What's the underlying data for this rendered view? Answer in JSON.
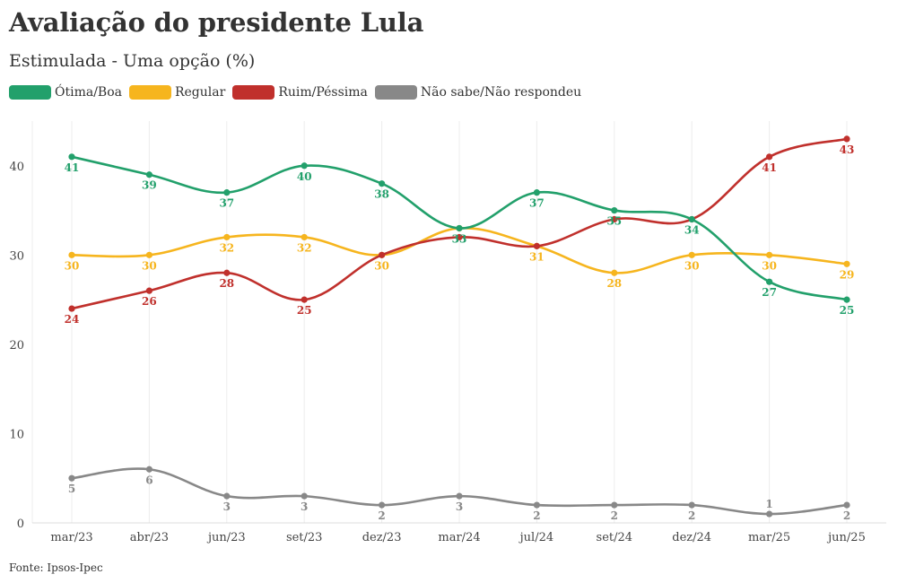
{
  "chart_data": {
    "type": "line",
    "title": "Avaliação do presidente Lula",
    "subtitle": "Estimulada - Uma opção (%)",
    "source": "Fonte: Ipsos-Ipec",
    "categories": [
      "mar/23",
      "abr/23",
      "jun/23",
      "set/23",
      "dez/23",
      "mar/24",
      "jul/24",
      "set/24",
      "dez/24",
      "mar/25",
      "jun/25"
    ],
    "ylim": [
      0,
      45
    ],
    "yticks": [
      0,
      10,
      20,
      30,
      40
    ],
    "grid": true,
    "legend_position": "top-left",
    "series": [
      {
        "name": "Ótima/Boa",
        "color": "#22a06b",
        "values": [
          41,
          39,
          37,
          40,
          38,
          33,
          37,
          35,
          34,
          27,
          25
        ]
      },
      {
        "name": "Regular",
        "color": "#f6b51e",
        "values": [
          30,
          30,
          32,
          32,
          30,
          33,
          31,
          28,
          30,
          30,
          29
        ]
      },
      {
        "name": "Ruim/Péssima",
        "color": "#c0302c",
        "values": [
          24,
          26,
          28,
          25,
          30,
          32,
          31,
          34,
          34,
          41,
          43
        ]
      },
      {
        "name": "Não sabe/Não respondeu",
        "color": "#888888",
        "values": [
          5,
          6,
          3,
          3,
          2,
          3,
          2,
          2,
          2,
          1,
          2
        ]
      }
    ],
    "data_labels": [
      {
        "series": 0,
        "index": 0,
        "text": "41",
        "pos": "below"
      },
      {
        "series": 0,
        "index": 1,
        "text": "39",
        "pos": "below"
      },
      {
        "series": 0,
        "index": 2,
        "text": "37",
        "pos": "below"
      },
      {
        "series": 0,
        "index": 3,
        "text": "40",
        "pos": "below"
      },
      {
        "series": 0,
        "index": 4,
        "text": "38",
        "pos": "below"
      },
      {
        "series": 0,
        "index": 5,
        "text": "33",
        "pos": "below"
      },
      {
        "series": 0,
        "index": 6,
        "text": "37",
        "pos": "below"
      },
      {
        "series": 0,
        "index": 7,
        "text": "35",
        "pos": "below"
      },
      {
        "series": 0,
        "index": 8,
        "text": "34",
        "pos": "below"
      },
      {
        "series": 0,
        "index": 9,
        "text": "27",
        "pos": "below"
      },
      {
        "series": 0,
        "index": 10,
        "text": "25",
        "pos": "below"
      },
      {
        "series": 1,
        "index": 0,
        "text": "30",
        "pos": "below"
      },
      {
        "series": 1,
        "index": 1,
        "text": "30",
        "pos": "below"
      },
      {
        "series": 1,
        "index": 2,
        "text": "32",
        "pos": "below"
      },
      {
        "series": 1,
        "index": 3,
        "text": "32",
        "pos": "below"
      },
      {
        "series": 1,
        "index": 4,
        "text": "30",
        "pos": "below"
      },
      {
        "series": 1,
        "index": 6,
        "text": "31",
        "pos": "below"
      },
      {
        "series": 1,
        "index": 7,
        "text": "28",
        "pos": "below"
      },
      {
        "series": 1,
        "index": 8,
        "text": "30",
        "pos": "below"
      },
      {
        "series": 1,
        "index": 9,
        "text": "30",
        "pos": "below"
      },
      {
        "series": 1,
        "index": 10,
        "text": "29",
        "pos": "below"
      },
      {
        "series": 2,
        "index": 0,
        "text": "24",
        "pos": "below"
      },
      {
        "series": 2,
        "index": 1,
        "text": "26",
        "pos": "below"
      },
      {
        "series": 2,
        "index": 2,
        "text": "28",
        "pos": "below"
      },
      {
        "series": 2,
        "index": 3,
        "text": "25",
        "pos": "below"
      },
      {
        "series": 2,
        "index": 9,
        "text": "41",
        "pos": "below"
      },
      {
        "series": 2,
        "index": 10,
        "text": "43",
        "pos": "below"
      },
      {
        "series": 3,
        "index": 0,
        "text": "5",
        "pos": "below"
      },
      {
        "series": 3,
        "index": 1,
        "text": "6",
        "pos": "below"
      },
      {
        "series": 3,
        "index": 2,
        "text": "3",
        "pos": "below"
      },
      {
        "series": 3,
        "index": 3,
        "text": "3",
        "pos": "below"
      },
      {
        "series": 3,
        "index": 4,
        "text": "2",
        "pos": "below"
      },
      {
        "series": 3,
        "index": 5,
        "text": "3",
        "pos": "below"
      },
      {
        "series": 3,
        "index": 6,
        "text": "2",
        "pos": "below"
      },
      {
        "series": 3,
        "index": 7,
        "text": "2",
        "pos": "below"
      },
      {
        "series": 3,
        "index": 8,
        "text": "2",
        "pos": "below"
      },
      {
        "series": 3,
        "index": 9,
        "text": "1",
        "pos": "above"
      },
      {
        "series": 3,
        "index": 10,
        "text": "2",
        "pos": "below"
      }
    ]
  }
}
